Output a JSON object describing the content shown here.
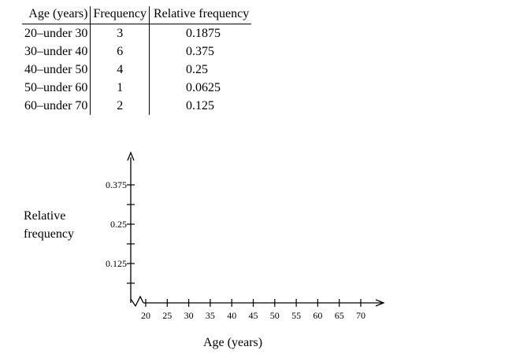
{
  "table": {
    "headers": [
      "Age (years)",
      "Frequency",
      "Relative frequency"
    ],
    "rows": [
      {
        "age": "20–under 30",
        "freq": "3",
        "rel": "0.1875"
      },
      {
        "age": "30–under 40",
        "freq": "6",
        "rel": "0.375"
      },
      {
        "age": "40–under 50",
        "freq": "4",
        "rel": "0.25"
      },
      {
        "age": "50–under 60",
        "freq": "1",
        "rel": "0.0625"
      },
      {
        "age": "60–under 70",
        "freq": "2",
        "rel": "0.125"
      }
    ]
  },
  "chart_data": {
    "type": "bar",
    "xlabel": "Age (years)",
    "ylabel": "Relative\nfrequency",
    "x_ticks": [
      20,
      25,
      30,
      35,
      40,
      45,
      50,
      55,
      60,
      65,
      70
    ],
    "y_ticks": [
      0.0625,
      0.125,
      0.1875,
      0.25,
      0.3125,
      0.375
    ],
    "y_tick_labels": [
      {
        "value": 0.125,
        "label": "0.125"
      },
      {
        "value": 0.25,
        "label": "0.25"
      },
      {
        "value": 0.375,
        "label": "0.375"
      }
    ],
    "xlim": [
      20,
      70
    ],
    "ylim": [
      0,
      0.375
    ],
    "axis_break": true,
    "grid": false,
    "categories": [],
    "values": []
  }
}
